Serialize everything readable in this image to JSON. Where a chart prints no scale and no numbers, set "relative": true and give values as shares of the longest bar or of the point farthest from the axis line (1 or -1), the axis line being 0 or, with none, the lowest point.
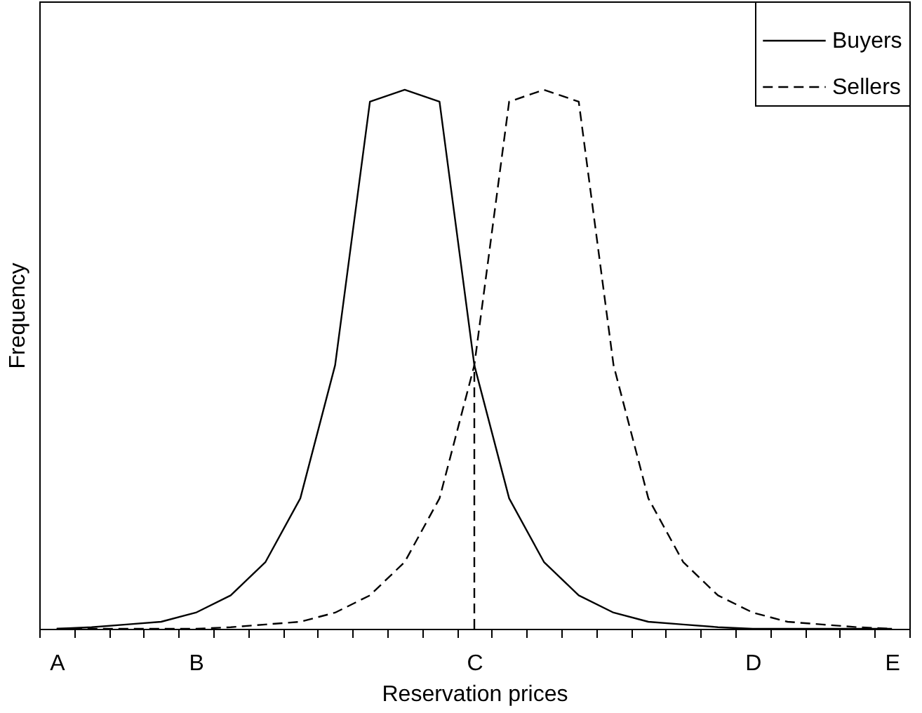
{
  "chart_data": {
    "type": "line",
    "relative": true,
    "xlabel": "Reservation prices",
    "ylabel": "Frequency",
    "legend": "top right",
    "grid": false,
    "marker": "none",
    "categories": [
      "A",
      null,
      null,
      null,
      "B",
      null,
      null,
      null,
      null,
      null,
      null,
      null,
      "C",
      null,
      null,
      null,
      null,
      null,
      null,
      null,
      "D",
      null,
      null,
      null,
      "E"
    ],
    "series": [
      {
        "name": "Buyers",
        "color": "#000000",
        "line_style": "solid",
        "values": [
          0,
          0.003,
          0.008,
          0.013,
          0.03,
          0.062,
          0.124,
          0.242,
          0.489,
          0.978,
          1,
          0.978,
          0.489,
          0.242,
          0.124,
          0.062,
          0.03,
          0.013,
          0.008,
          0.003,
          0,
          0,
          0,
          0,
          0
        ]
      },
      {
        "name": "Sellers",
        "color": "#000000",
        "line_style": "dashed",
        "values": [
          0,
          0,
          0,
          0,
          0,
          0.003,
          0.008,
          0.013,
          0.03,
          0.062,
          0.124,
          0.242,
          0.489,
          0.978,
          1,
          0.978,
          0.489,
          0.242,
          0.124,
          0.062,
          0.03,
          0.013,
          0.008,
          0.003,
          0
        ]
      },
      {
        "color": "#000000",
        "line_style": "dashed",
        "x": [
          "C",
          "C"
        ],
        "values": [
          0,
          0.489
        ]
      }
    ]
  }
}
